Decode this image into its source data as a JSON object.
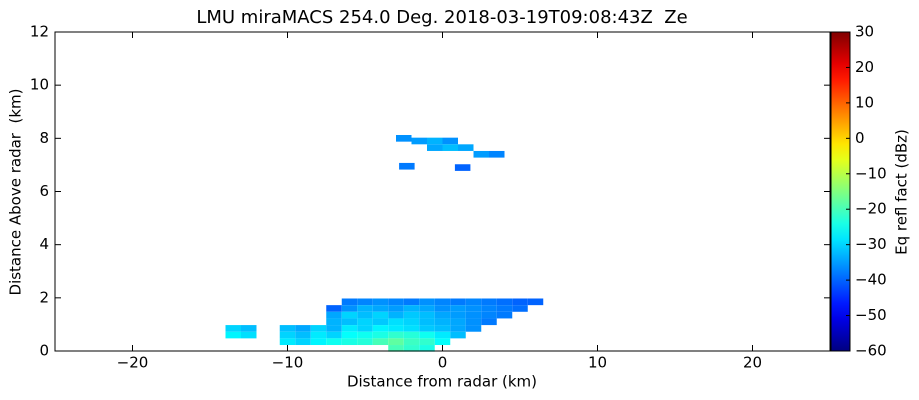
{
  "chart_data": {
    "type": "heatmap",
    "title": "LMU miraMACS 254.0 Deg. 2018-03-19T09:08:43Z  Ze",
    "x_label": "Distance from radar (km)",
    "y_label": "Distance Above radar  (km)",
    "colorbar_label": "Eq refl fact (dBz)",
    "cmap": "jet",
    "xlim": [
      -25,
      25
    ],
    "xticks": [
      {
        "value": -20,
        "label": "−20"
      },
      {
        "value": -10,
        "label": "−10"
      },
      0,
      10,
      20
    ],
    "ylim": [
      0,
      12
    ],
    "yticks": [
      0,
      2,
      4,
      6,
      8,
      10,
      12
    ],
    "clim": [
      -60,
      30
    ],
    "cticks": [
      {
        "value": -60,
        "label": "−60"
      },
      {
        "value": -50,
        "label": "−50"
      },
      {
        "value": -40,
        "label": "−40"
      },
      {
        "value": -30,
        "label": "−30"
      },
      {
        "value": -20,
        "label": "−20"
      },
      {
        "value": -10,
        "label": "−10"
      },
      0,
      10,
      20,
      30
    ],
    "x": [
      -6,
      -5,
      -4,
      -3,
      -2,
      -1,
      0,
      1,
      2,
      3,
      4,
      5,
      6,
      -7,
      -6,
      -5,
      -4,
      -3,
      -2,
      -1,
      0,
      1,
      2,
      3,
      4,
      5,
      -7,
      -6,
      -5,
      -4,
      -3,
      -2,
      -1,
      0,
      1,
      2,
      3,
      4,
      -7,
      -6,
      -5,
      -4,
      -3,
      -2,
      -1,
      0,
      1,
      2,
      3,
      -10,
      -9,
      -8,
      -7,
      -6,
      -5,
      -4,
      -3,
      -2,
      -1,
      0,
      1,
      2,
      -10,
      -9,
      -8,
      -7,
      -6,
      -5,
      -4,
      -3,
      -2,
      -1,
      0,
      1,
      -10,
      -9,
      -8,
      -7,
      -6,
      -5,
      -4,
      -3,
      -2,
      -1,
      0,
      -3,
      -2,
      -1,
      -13.5,
      -12.5,
      -13.5,
      -12.5,
      -2.5,
      -1.5,
      -0.5,
      0.5,
      -0.5,
      0.5,
      1.5,
      2.5,
      3.5,
      -2.3,
      1.3
    ],
    "y": [
      1.85,
      1.85,
      1.85,
      1.85,
      1.85,
      1.85,
      1.85,
      1.85,
      1.85,
      1.85,
      1.85,
      1.85,
      1.85,
      1.6,
      1.6,
      1.6,
      1.6,
      1.6,
      1.6,
      1.6,
      1.6,
      1.6,
      1.6,
      1.6,
      1.6,
      1.6,
      1.35,
      1.35,
      1.35,
      1.35,
      1.35,
      1.35,
      1.35,
      1.35,
      1.35,
      1.35,
      1.35,
      1.35,
      1.1,
      1.1,
      1.1,
      1.1,
      1.1,
      1.1,
      1.1,
      1.1,
      1.1,
      1.1,
      1.1,
      0.85,
      0.85,
      0.85,
      0.85,
      0.85,
      0.85,
      0.85,
      0.85,
      0.85,
      0.85,
      0.85,
      0.85,
      0.85,
      0.6,
      0.6,
      0.6,
      0.6,
      0.6,
      0.6,
      0.6,
      0.6,
      0.6,
      0.6,
      0.6,
      0.6,
      0.35,
      0.35,
      0.35,
      0.35,
      0.35,
      0.35,
      0.35,
      0.35,
      0.35,
      0.35,
      0.35,
      0.1,
      0.1,
      0.1,
      0.6,
      0.6,
      0.85,
      0.85,
      8.0,
      7.9,
      7.9,
      7.9,
      7.65,
      7.65,
      7.65,
      7.4,
      7.4,
      6.95,
      6.9
    ],
    "values": [
      -38,
      -37,
      -36,
      -37,
      -38,
      -36,
      -37,
      -38,
      -37,
      -38,
      -39,
      -40,
      -40,
      -40,
      -36,
      -33,
      -34,
      -35,
      -33,
      -34,
      -36,
      -35,
      -36,
      -37,
      -38,
      -39,
      -34,
      -30,
      -32,
      -30,
      -33,
      -31,
      -32,
      -34,
      -35,
      -36,
      -37,
      -38,
      -33,
      -32,
      -30,
      -31,
      -29,
      -30,
      -32,
      -33,
      -34,
      -36,
      -38,
      -32,
      -34,
      -30,
      -33,
      -28,
      -30,
      -27,
      -28,
      -29,
      -31,
      -32,
      -34,
      -36,
      -30,
      -32,
      -28,
      -30,
      -26,
      -25,
      -24,
      -22,
      -23,
      -25,
      -28,
      -32,
      -28,
      -30,
      -27,
      -25,
      -24,
      -23,
      -20,
      -18,
      -21,
      -22,
      -26,
      -20,
      -22,
      -24,
      -27,
      -29,
      -30,
      -32,
      -36,
      -35,
      -33,
      -36,
      -34,
      -32,
      -34,
      -35,
      -37,
      -38,
      -40
    ]
  }
}
